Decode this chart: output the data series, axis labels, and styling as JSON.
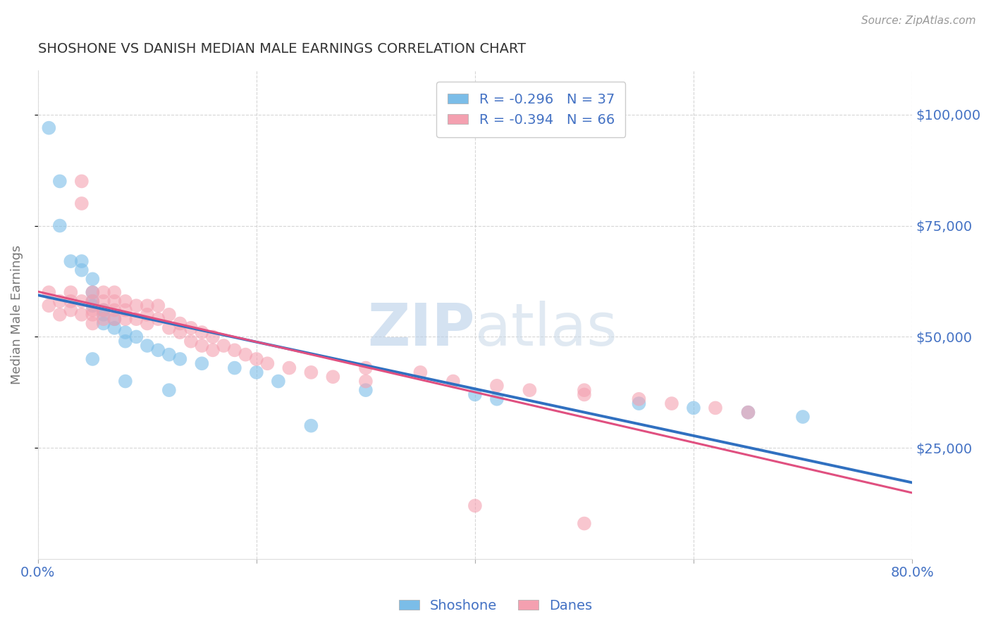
{
  "title": "SHOSHONE VS DANISH MEDIAN MALE EARNINGS CORRELATION CHART",
  "source_text": "Source: ZipAtlas.com",
  "ylabel": "Median Male Earnings",
  "xlim": [
    0.0,
    0.8
  ],
  "ylim": [
    0,
    110000
  ],
  "yticks": [
    25000,
    50000,
    75000,
    100000
  ],
  "ytick_labels": [
    "$25,000",
    "$50,000",
    "$75,000",
    "$100,000"
  ],
  "xticks": [
    0.0,
    0.2,
    0.4,
    0.6,
    0.8
  ],
  "xtick_labels": [
    "0.0%",
    "",
    "",
    "",
    "80.0%"
  ],
  "grid_color": "#cccccc",
  "background_color": "#ffffff",
  "watermark": "ZIPatlas",
  "watermark_color": "#c8dcf0",
  "shoshone_color": "#7bbde8",
  "danes_color": "#f4a0b0",
  "shoshone_line_color": "#3070c0",
  "danes_line_color": "#e05080",
  "R_shoshone": -0.296,
  "N_shoshone": 37,
  "R_danes": -0.394,
  "N_danes": 66,
  "shoshone_x": [
    0.01,
    0.02,
    0.03,
    0.04,
    0.04,
    0.05,
    0.05,
    0.05,
    0.05,
    0.06,
    0.06,
    0.06,
    0.07,
    0.07,
    0.08,
    0.08,
    0.09,
    0.1,
    0.11,
    0.12,
    0.13,
    0.15,
    0.18,
    0.2,
    0.22,
    0.3,
    0.4,
    0.42,
    0.55,
    0.6,
    0.65,
    0.7,
    0.02,
    0.05,
    0.08,
    0.12,
    0.25
  ],
  "shoshone_y": [
    97000,
    85000,
    67000,
    67000,
    65000,
    63000,
    60000,
    58000,
    57000,
    56000,
    55000,
    53000,
    54000,
    52000,
    51000,
    49000,
    50000,
    48000,
    47000,
    46000,
    45000,
    44000,
    43000,
    42000,
    40000,
    38000,
    37000,
    36000,
    35000,
    34000,
    33000,
    32000,
    75000,
    45000,
    40000,
    38000,
    30000
  ],
  "danes_x": [
    0.01,
    0.01,
    0.02,
    0.02,
    0.03,
    0.03,
    0.03,
    0.04,
    0.04,
    0.04,
    0.04,
    0.05,
    0.05,
    0.05,
    0.05,
    0.05,
    0.06,
    0.06,
    0.06,
    0.06,
    0.07,
    0.07,
    0.07,
    0.07,
    0.08,
    0.08,
    0.08,
    0.09,
    0.09,
    0.1,
    0.1,
    0.1,
    0.11,
    0.11,
    0.12,
    0.12,
    0.13,
    0.13,
    0.14,
    0.14,
    0.15,
    0.15,
    0.16,
    0.16,
    0.17,
    0.18,
    0.19,
    0.2,
    0.21,
    0.23,
    0.25,
    0.27,
    0.3,
    0.3,
    0.35,
    0.38,
    0.42,
    0.45,
    0.5,
    0.55,
    0.58,
    0.62,
    0.65,
    0.4,
    0.5,
    0.5
  ],
  "danes_y": [
    60000,
    57000,
    58000,
    55000,
    60000,
    58000,
    56000,
    85000,
    80000,
    58000,
    55000,
    60000,
    58000,
    56000,
    55000,
    53000,
    60000,
    58000,
    56000,
    54000,
    60000,
    58000,
    56000,
    54000,
    58000,
    56000,
    54000,
    57000,
    54000,
    57000,
    55000,
    53000,
    57000,
    54000,
    55000,
    52000,
    53000,
    51000,
    52000,
    49000,
    51000,
    48000,
    50000,
    47000,
    48000,
    47000,
    46000,
    45000,
    44000,
    43000,
    42000,
    41000,
    40000,
    43000,
    42000,
    40000,
    39000,
    38000,
    37000,
    36000,
    35000,
    34000,
    33000,
    12000,
    8000,
    38000
  ],
  "legend_shoshone_label": "R = -0.296   N = 37",
  "legend_danes_label": "R = -0.394   N = 66",
  "title_color": "#333333",
  "axis_label_color": "#777777",
  "tick_color": "#4472c4",
  "source_color": "#999999"
}
